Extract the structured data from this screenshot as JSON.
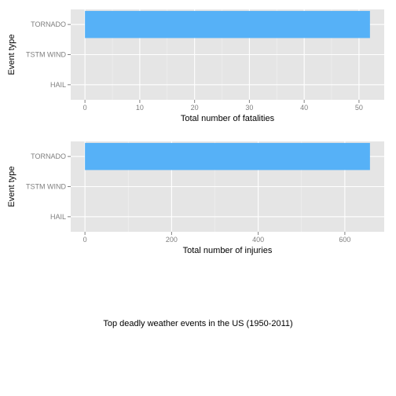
{
  "colors": {
    "panel_bg": "#e5e5e5",
    "grid_major": "#ffffff",
    "grid_minor": "#f2f2f2",
    "bar_fill": "#56b1f7",
    "tick_text": "#7f7f7f"
  },
  "title": "Top deadly weather events in the US (1950-2011)",
  "chart_data": [
    {
      "type": "bar",
      "orientation": "horizontal",
      "categories": [
        "TORNADO",
        "TSTM WIND",
        "HAIL"
      ],
      "values": [
        52,
        0,
        0
      ],
      "xlabel": "Total number of fatalities",
      "ylabel": "Event type",
      "xlim": [
        -2.6,
        54.6
      ],
      "xticks": [
        0,
        10,
        20,
        30,
        40,
        50
      ],
      "grid": true
    },
    {
      "type": "bar",
      "orientation": "horizontal",
      "categories": [
        "TORNADO",
        "TSTM WIND",
        "HAIL"
      ],
      "values": [
        658,
        0,
        0
      ],
      "xlabel": "Total number of injuries",
      "ylabel": "Event type",
      "xlim": [
        -32.9,
        690.9
      ],
      "xticks": [
        0,
        200,
        400,
        600
      ],
      "grid": true
    }
  ]
}
